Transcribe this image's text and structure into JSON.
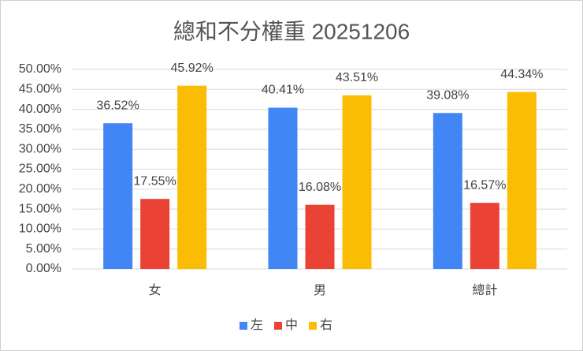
{
  "chart_data": {
    "type": "bar",
    "title": "總和不分權重 20251206",
    "categories": [
      "女",
      "男",
      "總計"
    ],
    "series": [
      {
        "name": "左",
        "color": "#4285f4",
        "values": [
          36.52,
          40.41,
          39.08
        ],
        "value_labels": [
          "36.52%",
          "40.41%",
          "39.08%"
        ]
      },
      {
        "name": "中",
        "color": "#ea4335",
        "values": [
          17.55,
          16.08,
          16.57
        ],
        "value_labels": [
          "17.55%",
          "16.08%",
          "16.57%"
        ]
      },
      {
        "name": "右",
        "color": "#fbbc04",
        "values": [
          45.92,
          43.51,
          44.34
        ],
        "value_labels": [
          "45.92%",
          "43.51%",
          "44.34%"
        ]
      }
    ],
    "ylim": [
      0,
      50
    ],
    "yticks": [
      {
        "value": 0,
        "label": "0.00%"
      },
      {
        "value": 5,
        "label": "5.00%"
      },
      {
        "value": 10,
        "label": "10.00%"
      },
      {
        "value": 15,
        "label": "15.00%"
      },
      {
        "value": 20,
        "label": "20.00%"
      },
      {
        "value": 25,
        "label": "25.00%"
      },
      {
        "value": 30,
        "label": "30.00%"
      },
      {
        "value": 35,
        "label": "35.00%"
      },
      {
        "value": 40,
        "label": "40.00%"
      },
      {
        "value": 45,
        "label": "45.00%"
      },
      {
        "value": 50,
        "label": "50.00%"
      }
    ],
    "grid": true,
    "legend": "bottom"
  }
}
